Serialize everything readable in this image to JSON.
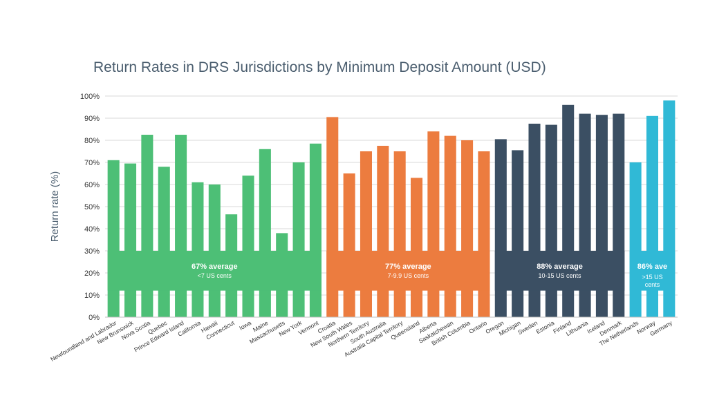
{
  "chart_data": {
    "type": "bar",
    "title": "Return Rates in DRS Jurisdictions by Minimum Deposit Amount (USD)",
    "xlabel": "",
    "ylabel": "Return rate (%)",
    "ylim": [
      0,
      100
    ],
    "yticks": [
      0,
      10,
      20,
      30,
      40,
      50,
      60,
      70,
      80,
      90,
      100
    ],
    "ytick_labels": [
      "0%",
      "10%",
      "20%",
      "30%",
      "40%",
      "50%",
      "60%",
      "70%",
      "80%",
      "90%",
      "100%"
    ],
    "grid": true,
    "groups": [
      {
        "color": "#4dbf76",
        "label": "67% average",
        "sublabel": "<7 US cents",
        "categories": [
          "Newfoundland and Labrador",
          "New Brunswick",
          "Nova Scotia",
          "Quebec",
          "Prince Edward Island",
          "California",
          "Hawaii",
          "Connecticut",
          "Iowa",
          "Maine",
          "Massachusetts",
          "New York",
          "Vermont"
        ],
        "values": [
          71,
          69.5,
          82.5,
          68,
          82.5,
          61,
          60,
          46.5,
          64,
          76,
          38,
          70,
          78.5
        ]
      },
      {
        "color": "#ec7c3f",
        "label": "77% average",
        "sublabel": "7-9.9 US cents",
        "categories": [
          "Croatia",
          "New South Wales",
          "Northern Territory",
          "South Australia",
          "Australia Capital Territory",
          "Queensland",
          "Alberta",
          "Saskatchewan",
          "British Columbia",
          "Ontario"
        ],
        "values": [
          90.5,
          65,
          75,
          77.5,
          75,
          63,
          84,
          82,
          80,
          75
        ]
      },
      {
        "color": "#3b4f63",
        "label": "88% average",
        "sublabel": "10-15 US cents",
        "categories": [
          "Oregon",
          "Michigan",
          "Sweden",
          "Estonia",
          "Finland",
          "Lithuania",
          "Iceland",
          "Denmark"
        ],
        "values": [
          80.5,
          75.5,
          87.5,
          87,
          96,
          92,
          91.5,
          92
        ]
      },
      {
        "color": "#30b9d6",
        "label": "86% ave",
        "sublabel": ">15 US cents",
        "categories": [
          "The Netherlands",
          "Norway",
          "Germany"
        ],
        "values": [
          70,
          91,
          98
        ]
      }
    ]
  }
}
